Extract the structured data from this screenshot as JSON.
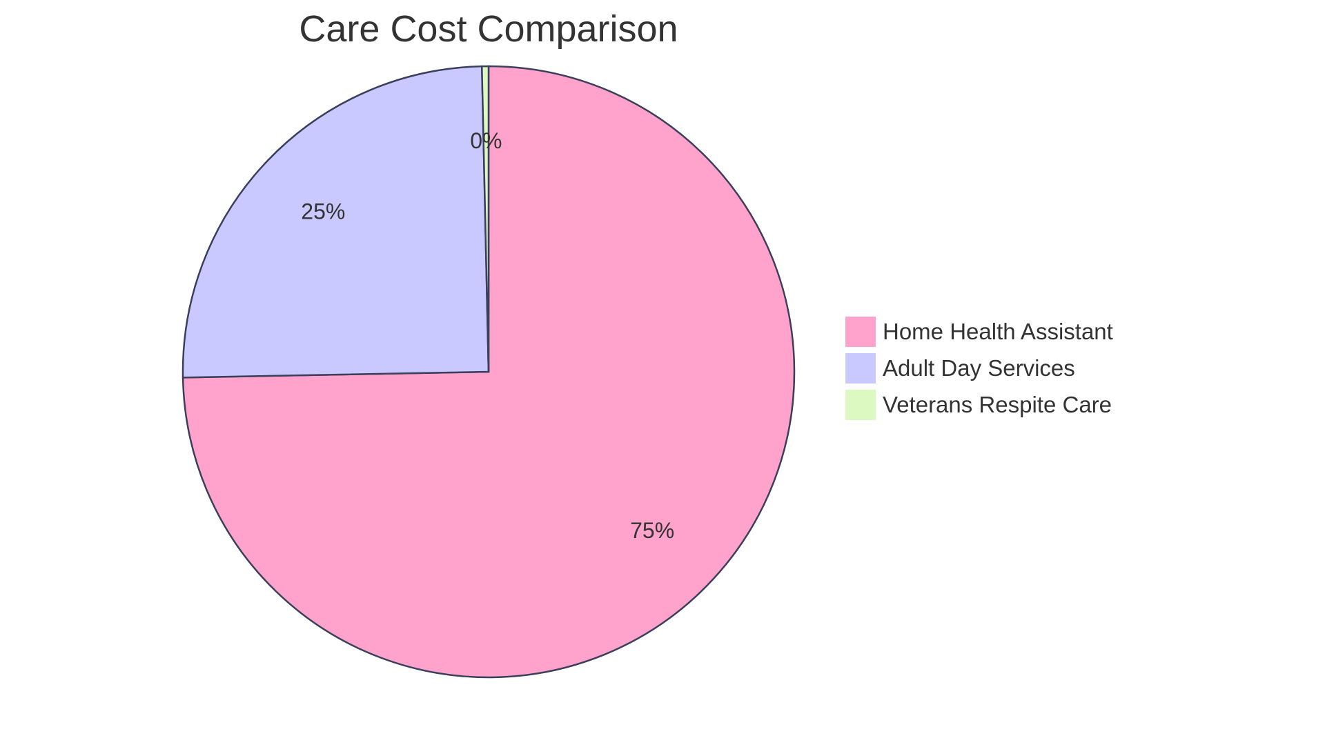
{
  "chart_data": {
    "type": "pie",
    "title": "Care Cost Comparison",
    "legend_position": "right",
    "start_angle": "top, clockwise",
    "slices": [
      {
        "name": "Home Health Assistant",
        "value": 74.7,
        "label": "75%",
        "color": "#FFA3CC"
      },
      {
        "name": "Adult Day Services",
        "value": 24.95,
        "label": "25%",
        "color": "#C9C9FF"
      },
      {
        "name": "Veterans Respite Care",
        "value": 0.35,
        "label": "0%",
        "color": "#DBF9C0"
      }
    ],
    "stroke_color": "#3B3F5C"
  }
}
